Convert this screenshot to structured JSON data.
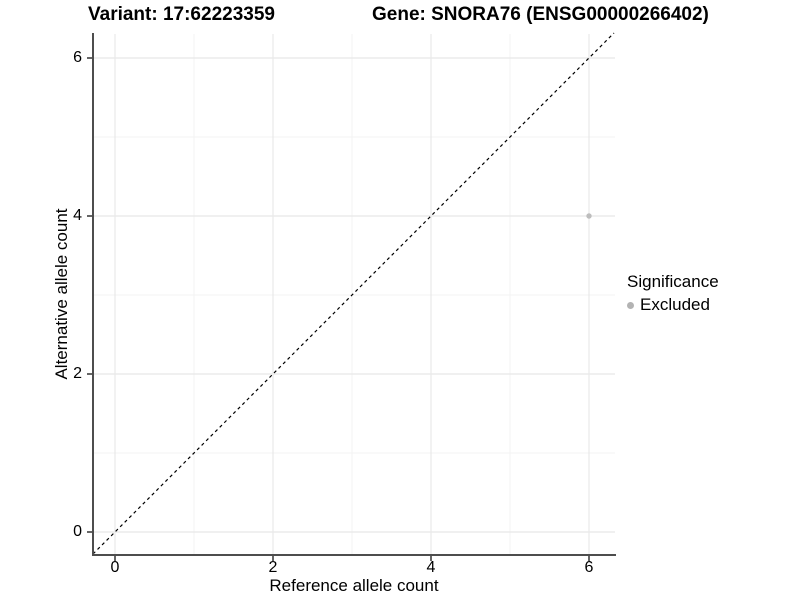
{
  "chart_data": {
    "type": "scatter",
    "titles": {
      "left": "Variant: 17:62223359",
      "right": "Gene: SNORA76 (ENSG00000266402)"
    },
    "xlabel": "Reference allele count",
    "ylabel": "Alternative allele count",
    "x_ticks": [
      "0",
      "2",
      "4",
      "6"
    ],
    "y_ticks": [
      "0",
      "2",
      "4",
      "6"
    ],
    "xlim": [
      -0.3,
      6.3
    ],
    "ylim": [
      -0.3,
      6.3
    ],
    "grid": "major at 0,2,4,6 and minor at 1,3,5 (light gray), white background",
    "reference_line": {
      "equation": "y = x",
      "style": "dashed",
      "color": "#000000"
    },
    "points": [
      {
        "x": 6,
        "y": 4,
        "series": "Excluded",
        "color": "#bdbdbd",
        "radius": 2.7
      }
    ],
    "legend": {
      "title": "Significance",
      "position": "right",
      "entries": [
        {
          "label": "Excluded",
          "color": "#b3b3b3"
        }
      ]
    },
    "colors": {
      "axis_line": "#4d4d4d",
      "tick": "#333333",
      "grid_major": "#e8e8e8",
      "grid_minor": "#f3f3f3",
      "text": "#000000"
    }
  }
}
